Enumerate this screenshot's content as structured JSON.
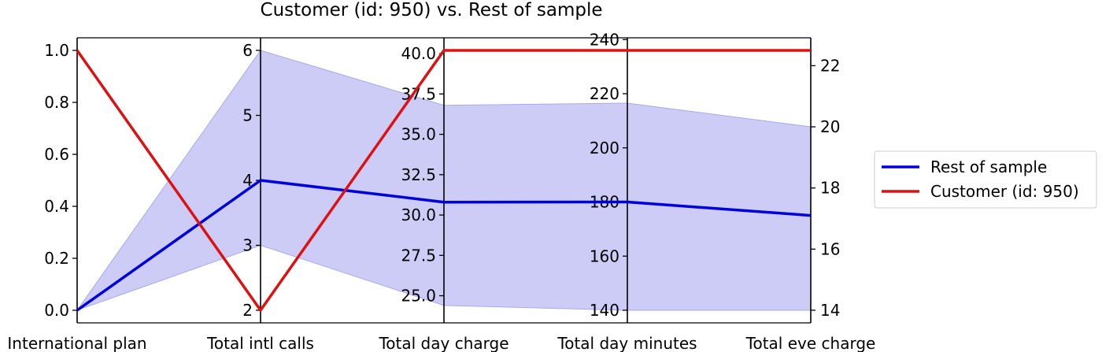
{
  "chart_data": {
    "type": "line",
    "title": "Customer (id: 950) vs. Rest of sample",
    "categories": [
      "International plan",
      "Total intl calls",
      "Total day charge",
      "Total day minutes",
      "Total eve charge"
    ],
    "axes": [
      {
        "variable": "International plan",
        "range": [
          0.0,
          1.0
        ],
        "ticks": [
          "0.0",
          "0.2",
          "0.4",
          "0.6",
          "0.8",
          "1.0"
        ],
        "tick_values": [
          0.0,
          0.2,
          0.4,
          0.6,
          0.8,
          1.0
        ]
      },
      {
        "variable": "Total intl calls",
        "range": [
          2,
          6
        ],
        "ticks": [
          "2",
          "3",
          "4",
          "5",
          "6"
        ],
        "tick_values": [
          2,
          3,
          4,
          5,
          6
        ]
      },
      {
        "variable": "Total day charge",
        "range": [
          24.1,
          40.2
        ],
        "ticks": [
          "25.0",
          "27.5",
          "30.0",
          "32.5",
          "35.0",
          "37.5",
          "40.0"
        ],
        "tick_values": [
          25.0,
          27.5,
          30.0,
          32.5,
          35.0,
          37.5,
          40.0
        ]
      },
      {
        "variable": "Total day minutes",
        "range": [
          140,
          236
        ],
        "ticks": [
          "140",
          "160",
          "180",
          "200",
          "220",
          "240"
        ],
        "tick_values": [
          140,
          160,
          180,
          200,
          220,
          240
        ]
      },
      {
        "variable": "Total eve charge",
        "range": [
          14.0,
          22.5
        ],
        "ticks": [
          "14",
          "16",
          "18",
          "20",
          "22"
        ],
        "tick_values": [
          14,
          16,
          18,
          20,
          22
        ],
        "side": "right"
      }
    ],
    "series": [
      {
        "name": "Rest of sample",
        "color": "#0000dd",
        "values": [
          0.0,
          4.0,
          30.8,
          180.0,
          17.1
        ]
      },
      {
        "name": "Customer (id: 950)",
        "color": "#dd1111",
        "values": [
          1.0,
          2.0,
          40.2,
          236.0,
          22.5
        ]
      }
    ],
    "band": {
      "color": "#ccccf7",
      "upper": [
        0.0,
        6.0,
        36.8,
        216.5,
        20.0
      ],
      "lower": [
        0.0,
        3.0,
        24.4,
        140.0,
        14.0
      ]
    },
    "legend_position": "right"
  }
}
